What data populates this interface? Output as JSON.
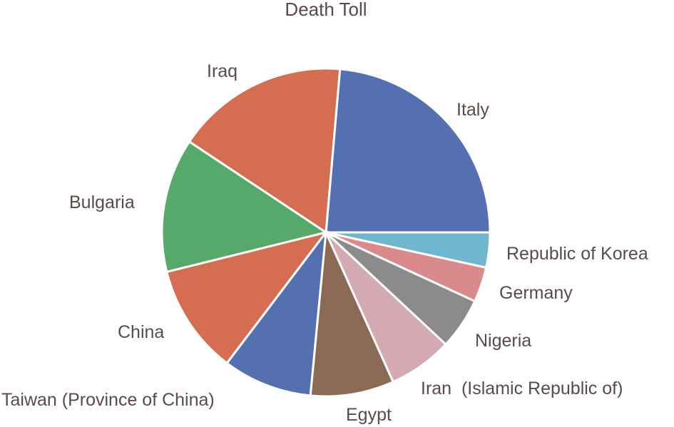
{
  "chart_data": {
    "type": "pie",
    "title": "Death Toll",
    "start": "right, counter-clockwise",
    "categories": [
      "Italy",
      "Iraq",
      "Bulgaria",
      "China",
      "Taiwan (Province of China)",
      "Egypt",
      "Iran  (Islamic Republic of)",
      "Nigeria",
      "Germany",
      "Republic of Korea"
    ],
    "values": [
      24.7,
      17.8,
      13.8,
      11.3,
      9.2,
      8.6,
      6.6,
      5.3,
      3.6,
      3.6
    ],
    "colors": [
      "#5470b1",
      "#d56d51",
      "#56a86b",
      "#d56d51",
      "#5470b1",
      "#8a6a55",
      "#d3a9b3",
      "#8b8b8b",
      "#db8a8c",
      "#6fb6cf"
    ]
  }
}
